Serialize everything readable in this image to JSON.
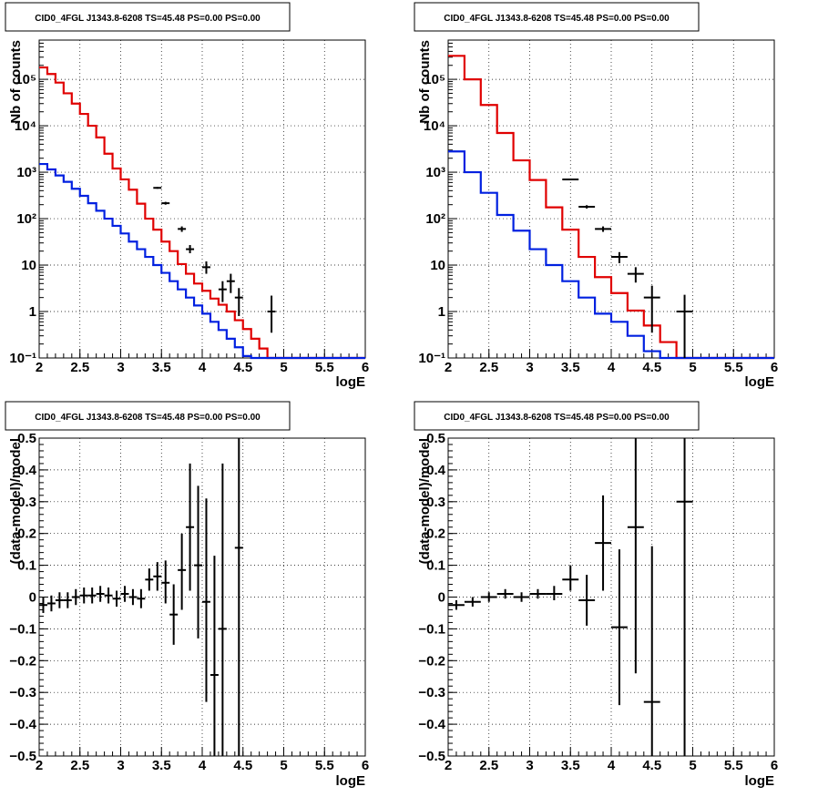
{
  "colors": {
    "data": "#000000",
    "total_model": "#e00000",
    "source_model": "#0020e0",
    "grid": "#000000"
  },
  "chart_data": [
    {
      "id": "counts-fine",
      "type": "line",
      "title": "CID0_4FGL J1343.8-6208 TS=45.48 PS=0.00 PS=0.00",
      "xlabel": "logE",
      "ylabel": "Nb of counts",
      "xlim": [
        2,
        6
      ],
      "ylim": [
        0.1,
        700000
      ],
      "yscale": "log",
      "grid": true,
      "x_ticks": [
        "2",
        "2.5",
        "3",
        "3.5",
        "4",
        "4.5",
        "5",
        "5.5",
        "6"
      ],
      "y_ticks": [
        {
          "v": 0.1,
          "label": "10⁻¹"
        },
        {
          "v": 1,
          "label": "1"
        },
        {
          "v": 10,
          "label": "10"
        },
        {
          "v": 100,
          "label": "10²"
        },
        {
          "v": 1000,
          "label": "10³"
        },
        {
          "v": 10000,
          "label": "10⁴"
        },
        {
          "v": 100000,
          "label": "10⁵"
        }
      ],
      "bin_edges": [
        2.0,
        2.1,
        2.2,
        2.3,
        2.4,
        2.5,
        2.6,
        2.7,
        2.8,
        2.9,
        3.0,
        3.1,
        3.2,
        3.3,
        3.4,
        3.5,
        3.6,
        3.7,
        3.8,
        3.9,
        4.0,
        4.1,
        4.2,
        4.3,
        4.4,
        4.5,
        4.6,
        4.7,
        4.8,
        4.9,
        5.0,
        5.1,
        5.2,
        5.3,
        5.4,
        5.5,
        5.6,
        5.7,
        5.8,
        5.9,
        6.0
      ],
      "series": [
        {
          "role": "total_model",
          "values": [
            180000,
            130000,
            85000,
            50000,
            30000,
            18000,
            10000,
            5600,
            2500,
            1200,
            700,
            420,
            210,
            100,
            58,
            32,
            20,
            10.5,
            6.5,
            4.0,
            2.8,
            1.9,
            1.4,
            1.0,
            0.65,
            0.42,
            0.26,
            0.16,
            0.1,
            0.1,
            0.1,
            0.1,
            0.1,
            0.1,
            0.1,
            0.1,
            0.1,
            0.1,
            0.1,
            0.1
          ]
        },
        {
          "role": "source_model",
          "values": [
            1500,
            1150,
            850,
            620,
            440,
            310,
            215,
            148,
            100,
            70,
            48,
            32,
            22,
            15,
            10,
            6.8,
            4.5,
            3.0,
            2.0,
            1.35,
            0.9,
            0.6,
            0.4,
            0.26,
            0.17,
            0.11,
            0.1,
            0.1,
            0.1,
            0.1,
            0.1,
            0.1,
            0.1,
            0.1,
            0.1,
            0.1,
            0.1,
            0.1,
            0.1,
            0.1
          ]
        }
      ],
      "points": [
        {
          "x": 3.45,
          "y": 460,
          "lo": 440,
          "hi": 480
        },
        {
          "x": 3.55,
          "y": 215,
          "lo": 200,
          "hi": 230
        },
        {
          "x": 3.75,
          "y": 60,
          "lo": 52,
          "hi": 68
        },
        {
          "x": 3.85,
          "y": 22,
          "lo": 18,
          "hi": 27
        },
        {
          "x": 4.05,
          "y": 9,
          "lo": 6.5,
          "hi": 12
        },
        {
          "x": 4.25,
          "y": 3,
          "lo": 1.6,
          "hi": 4.5
        },
        {
          "x": 4.35,
          "y": 4.5,
          "lo": 2.5,
          "hi": 6.5
        },
        {
          "x": 4.45,
          "y": 2,
          "lo": 0.8,
          "hi": 3.2
        },
        {
          "x": 4.85,
          "y": 1,
          "lo": 0.35,
          "hi": 2.2
        }
      ]
    },
    {
      "id": "counts-coarse",
      "type": "line",
      "title": "CID0_4FGL J1343.8-6208 TS=45.48 PS=0.00 PS=0.00",
      "xlabel": "logE",
      "ylabel": "Nb of counts",
      "xlim": [
        2,
        6
      ],
      "ylim": [
        0.1,
        700000
      ],
      "yscale": "log",
      "grid": true,
      "x_ticks": [
        "2",
        "2.5",
        "3",
        "3.5",
        "4",
        "4.5",
        "5",
        "5.5",
        "6"
      ],
      "y_ticks": [
        {
          "v": 0.1,
          "label": "10⁻¹"
        },
        {
          "v": 1,
          "label": "1"
        },
        {
          "v": 10,
          "label": "10"
        },
        {
          "v": 100,
          "label": "10²"
        },
        {
          "v": 1000,
          "label": "10³"
        },
        {
          "v": 10000,
          "label": "10⁴"
        },
        {
          "v": 100000,
          "label": "10⁵"
        }
      ],
      "bin_edges": [
        2.0,
        2.2,
        2.4,
        2.6,
        2.8,
        3.0,
        3.2,
        3.4,
        3.6,
        3.8,
        4.0,
        4.2,
        4.4,
        4.6,
        4.8,
        5.0,
        5.2,
        5.4,
        5.6,
        5.8,
        6.0
      ],
      "series": [
        {
          "role": "total_model",
          "values": [
            320000,
            100000,
            28000,
            7000,
            1800,
            680,
            175,
            58,
            15,
            5.5,
            2.5,
            1.05,
            0.5,
            0.22,
            0.1,
            0.1,
            0.1,
            0.1,
            0.1,
            0.1
          ]
        },
        {
          "role": "source_model",
          "values": [
            2800,
            1000,
            360,
            120,
            55,
            22,
            10,
            4.5,
            2.0,
            0.9,
            0.6,
            0.3,
            0.14,
            0.1,
            0.1,
            0.1,
            0.1,
            0.1,
            0.1,
            0.1
          ]
        }
      ],
      "points": [
        {
          "x": 3.5,
          "y": 700,
          "lo": 670,
          "hi": 730
        },
        {
          "x": 3.7,
          "y": 180,
          "lo": 165,
          "hi": 195
        },
        {
          "x": 3.9,
          "y": 60,
          "lo": 52,
          "hi": 68
        },
        {
          "x": 4.1,
          "y": 15,
          "lo": 11,
          "hi": 19
        },
        {
          "x": 4.3,
          "y": 6.5,
          "lo": 4.2,
          "hi": 9
        },
        {
          "x": 4.5,
          "y": 2,
          "lo": 0.35,
          "hi": 3.6
        },
        {
          "x": 4.9,
          "y": 1,
          "lo": 0.1,
          "hi": 2.3
        }
      ]
    },
    {
      "id": "residuals-fine",
      "type": "scatter",
      "title": "CID0_4FGL J1343.8-6208 TS=45.48 PS=0.00 PS=0.00",
      "xlabel": "logE",
      "ylabel": "(data-model)/model",
      "xlim": [
        2,
        6
      ],
      "ylim": [
        -0.5,
        0.5
      ],
      "grid": true,
      "x_ticks": [
        "2",
        "2.5",
        "3",
        "3.5",
        "4",
        "4.5",
        "5",
        "5.5",
        "6"
      ],
      "y_ticks": [
        {
          "v": -0.5,
          "label": "−0.5"
        },
        {
          "v": -0.4,
          "label": "−0.4"
        },
        {
          "v": -0.3,
          "label": "−0.3"
        },
        {
          "v": -0.2,
          "label": "−0.2"
        },
        {
          "v": -0.1,
          "label": "−0.1"
        },
        {
          "v": 0,
          "label": "0"
        },
        {
          "v": 0.1,
          "label": "0.1"
        },
        {
          "v": 0.2,
          "label": "0.2"
        },
        {
          "v": 0.3,
          "label": "0.3"
        },
        {
          "v": 0.4,
          "label": "0.4"
        },
        {
          "v": 0.5,
          "label": "0.5"
        }
      ],
      "half_bin": 0.05,
      "points": [
        {
          "x": 2.05,
          "y": -0.025,
          "lo": -0.05,
          "hi": 0.0
        },
        {
          "x": 2.15,
          "y": -0.02,
          "lo": -0.045,
          "hi": 0.005
        },
        {
          "x": 2.25,
          "y": -0.01,
          "lo": -0.035,
          "hi": 0.015
        },
        {
          "x": 2.35,
          "y": -0.01,
          "lo": -0.035,
          "hi": 0.015
        },
        {
          "x": 2.45,
          "y": 0.0,
          "lo": -0.025,
          "hi": 0.025
        },
        {
          "x": 2.55,
          "y": 0.005,
          "lo": -0.02,
          "hi": 0.03
        },
        {
          "x": 2.65,
          "y": 0.005,
          "lo": -0.02,
          "hi": 0.03
        },
        {
          "x": 2.75,
          "y": 0.01,
          "lo": -0.015,
          "hi": 0.035
        },
        {
          "x": 2.85,
          "y": 0.005,
          "lo": -0.02,
          "hi": 0.03
        },
        {
          "x": 2.95,
          "y": -0.005,
          "lo": -0.03,
          "hi": 0.02
        },
        {
          "x": 3.05,
          "y": 0.01,
          "lo": -0.015,
          "hi": 0.035
        },
        {
          "x": 3.15,
          "y": 0.0,
          "lo": -0.025,
          "hi": 0.025
        },
        {
          "x": 3.25,
          "y": -0.005,
          "lo": -0.035,
          "hi": 0.025
        },
        {
          "x": 3.35,
          "y": 0.055,
          "lo": 0.02,
          "hi": 0.09
        },
        {
          "x": 3.45,
          "y": 0.065,
          "lo": 0.02,
          "hi": 0.11
        },
        {
          "x": 3.55,
          "y": 0.045,
          "lo": -0.02,
          "hi": 0.115
        },
        {
          "x": 3.65,
          "y": -0.055,
          "lo": -0.15,
          "hi": 0.04
        },
        {
          "x": 3.75,
          "y": 0.085,
          "lo": -0.04,
          "hi": 0.2
        },
        {
          "x": 3.85,
          "y": 0.22,
          "lo": 0.02,
          "hi": 0.42
        },
        {
          "x": 3.95,
          "y": 0.1,
          "lo": -0.13,
          "hi": 0.35
        },
        {
          "x": 4.05,
          "y": -0.015,
          "lo": -0.33,
          "hi": 0.31
        },
        {
          "x": 4.15,
          "y": -0.245,
          "lo": -0.5,
          "hi": 0.13
        },
        {
          "x": 4.25,
          "y": -0.1,
          "lo": -0.5,
          "hi": 0.42
        },
        {
          "x": 4.45,
          "y": 0.155,
          "lo": -0.5,
          "hi": 0.5
        }
      ]
    },
    {
      "id": "residuals-coarse",
      "type": "scatter",
      "title": "CID0_4FGL J1343.8-6208 TS=45.48 PS=0.00 PS=0.00",
      "xlabel": "logE",
      "ylabel": "(data-model)/model",
      "xlim": [
        2,
        6
      ],
      "ylim": [
        -0.5,
        0.5
      ],
      "grid": true,
      "x_ticks": [
        "2",
        "2.5",
        "3",
        "3.5",
        "4",
        "4.5",
        "5",
        "5.5",
        "6"
      ],
      "y_ticks": [
        {
          "v": -0.5,
          "label": "−0.5"
        },
        {
          "v": -0.4,
          "label": "−0.4"
        },
        {
          "v": -0.3,
          "label": "−0.3"
        },
        {
          "v": -0.2,
          "label": "−0.2"
        },
        {
          "v": -0.1,
          "label": "−0.1"
        },
        {
          "v": 0,
          "label": "0"
        },
        {
          "v": 0.1,
          "label": "0.1"
        },
        {
          "v": 0.2,
          "label": "0.2"
        },
        {
          "v": 0.3,
          "label": "0.3"
        },
        {
          "v": 0.4,
          "label": "0.4"
        },
        {
          "v": 0.5,
          "label": "0.5"
        }
      ],
      "half_bin": 0.1,
      "points": [
        {
          "x": 2.1,
          "y": -0.025,
          "lo": -0.04,
          "hi": -0.01
        },
        {
          "x": 2.3,
          "y": -0.015,
          "lo": -0.03,
          "hi": 0.0
        },
        {
          "x": 2.5,
          "y": 0.0,
          "lo": -0.015,
          "hi": 0.015
        },
        {
          "x": 2.7,
          "y": 0.01,
          "lo": -0.005,
          "hi": 0.025
        },
        {
          "x": 2.9,
          "y": 0.0,
          "lo": -0.015,
          "hi": 0.015
        },
        {
          "x": 3.1,
          "y": 0.01,
          "lo": -0.005,
          "hi": 0.025
        },
        {
          "x": 3.3,
          "y": 0.01,
          "lo": -0.01,
          "hi": 0.035
        },
        {
          "x": 3.5,
          "y": 0.055,
          "lo": 0.02,
          "hi": 0.1
        },
        {
          "x": 3.7,
          "y": -0.01,
          "lo": -0.09,
          "hi": 0.07
        },
        {
          "x": 3.9,
          "y": 0.17,
          "lo": 0.02,
          "hi": 0.32
        },
        {
          "x": 4.1,
          "y": -0.095,
          "lo": -0.34,
          "hi": 0.15
        },
        {
          "x": 4.3,
          "y": 0.22,
          "lo": -0.24,
          "hi": 0.5
        },
        {
          "x": 4.5,
          "y": -0.33,
          "lo": -0.5,
          "hi": 0.16
        },
        {
          "x": 4.9,
          "y": 0.3,
          "lo": -0.5,
          "hi": 0.5
        }
      ]
    }
  ]
}
